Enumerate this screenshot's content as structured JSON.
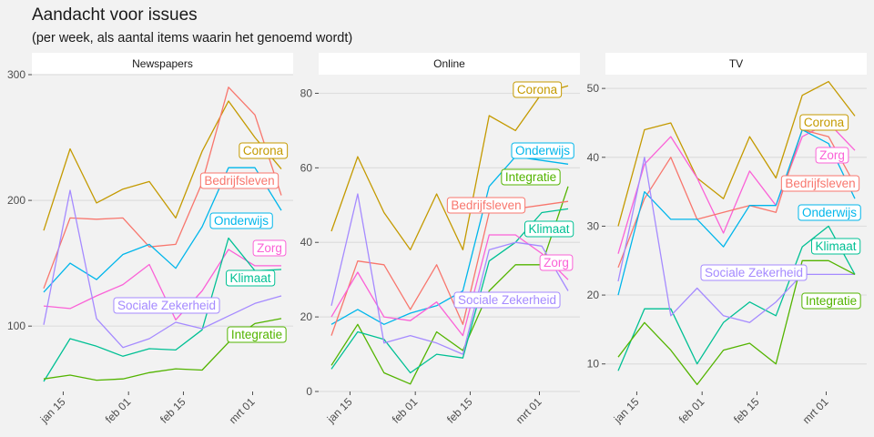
{
  "title": "Aandacht voor issues",
  "subtitle": "(per week, als aantal items waarin het genoemd wordt)",
  "series_colors": {
    "Bedrijfsleven": "#F8766D",
    "Corona": "#C49A00",
    "Integratie": "#53B400",
    "Klimaat": "#00C094",
    "Onderwijs": "#00B6EB",
    "Sociale Zekerheid": "#A58AFF",
    "Zorg": "#FB61D7"
  },
  "chart_data": [
    {
      "type": "line",
      "panel": "Newspapers",
      "x": [
        "2020-01-06",
        "2020-01-13",
        "2020-01-20",
        "2020-01-27",
        "2020-02-03",
        "2020-02-10",
        "2020-02-17",
        "2020-02-24",
        "2020-03-02",
        "2020-03-09"
      ],
      "x_ticks": [
        "jan 15",
        "feb 01",
        "feb 15",
        "mrt 01"
      ],
      "y_ticks": [
        100,
        200,
        300
      ],
      "ylim": [
        48,
        300
      ],
      "series": [
        {
          "name": "Corona",
          "values": [
            176,
            241,
            198,
            209,
            215,
            186,
            239,
            279,
            250,
            225
          ]
        },
        {
          "name": "Bedrijfsleven",
          "values": [
            130,
            186,
            185,
            186,
            163,
            165,
            214,
            290,
            268,
            204
          ]
        },
        {
          "name": "Onderwijs",
          "values": [
            127,
            150,
            137,
            157,
            165,
            146,
            179,
            226,
            226,
            192
          ]
        },
        {
          "name": "Zorg",
          "values": [
            116,
            114,
            124,
            133,
            149,
            105,
            128,
            161,
            148,
            148
          ]
        },
        {
          "name": "Klimaat",
          "values": [
            56,
            90,
            84,
            76,
            82,
            81,
            97,
            170,
            144,
            145
          ]
        },
        {
          "name": "Sociale Zekerheid",
          "values": [
            101,
            208,
            106,
            83,
            90,
            103,
            98,
            108,
            118,
            124
          ]
        },
        {
          "name": "Integratie",
          "values": [
            58,
            61,
            57,
            58,
            63,
            66,
            65,
            87,
            102,
            106
          ]
        }
      ],
      "labels": {
        "Corona": "Corona",
        "Bedrijfsleven": "Bedrijfsleven",
        "Onderwijs": "Onderwijs",
        "Zorg": "Zorg",
        "Klimaat": "Klimaat",
        "Sociale Zekerheid": "Sociale Zekerheid",
        "Integratie": "Integratie"
      }
    },
    {
      "type": "line",
      "panel": "Online",
      "x": [
        "2020-01-06",
        "2020-01-13",
        "2020-01-20",
        "2020-01-27",
        "2020-02-03",
        "2020-02-10",
        "2020-02-17",
        "2020-02-24",
        "2020-03-02",
        "2020-03-09"
      ],
      "x_ticks": [
        "jan 15",
        "feb 01",
        "feb 15",
        "mrt 01"
      ],
      "y_ticks": [
        0,
        20,
        40,
        60,
        80
      ],
      "ylim": [
        0,
        85
      ],
      "series": [
        {
          "name": "Corona",
          "values": [
            43,
            63,
            48,
            38,
            53,
            38,
            74,
            70,
            80,
            82
          ]
        },
        {
          "name": "Onderwijs",
          "values": [
            18,
            22,
            18,
            21,
            23,
            27,
            55,
            63,
            62,
            61
          ]
        },
        {
          "name": "Integratie",
          "values": [
            7,
            18,
            5,
            2,
            16,
            11,
            27,
            34,
            34,
            55
          ]
        },
        {
          "name": "Bedrijfsleven",
          "values": [
            15,
            35,
            34,
            22,
            34,
            18,
            48,
            49,
            50,
            51
          ]
        },
        {
          "name": "Klimaat",
          "values": [
            6,
            16,
            14,
            5,
            10,
            9,
            35,
            40,
            48,
            49
          ]
        },
        {
          "name": "Zorg",
          "values": [
            20,
            32,
            20,
            19,
            24,
            15,
            42,
            42,
            37,
            30
          ]
        },
        {
          "name": "Sociale Zekerheid",
          "values": [
            23,
            53,
            13,
            15,
            13,
            10,
            38,
            40,
            39,
            27
          ]
        }
      ],
      "labels": {
        "Corona": "Corona",
        "Onderwijs": "Onderwijs",
        "Integratie": "Integratie",
        "Bedrijfsleven": "Bedrijfsleven",
        "Klimaat": "Klimaat",
        "Zorg": "Zorg",
        "Sociale Zekerheid": "Sociale Zekerheid"
      }
    },
    {
      "type": "line",
      "panel": "TV",
      "x": [
        "2020-01-06",
        "2020-01-13",
        "2020-01-20",
        "2020-01-27",
        "2020-02-03",
        "2020-02-10",
        "2020-02-17",
        "2020-02-24",
        "2020-03-02",
        "2020-03-09"
      ],
      "x_ticks": [
        "jan 15",
        "feb 01",
        "feb 15",
        "mrt 01"
      ],
      "y_ticks": [
        10,
        20,
        30,
        40,
        50
      ],
      "ylim": [
        6,
        52
      ],
      "series": [
        {
          "name": "Corona",
          "values": [
            30,
            44,
            45,
            37,
            34,
            43,
            37,
            49,
            51,
            46
          ]
        },
        {
          "name": "Zorg",
          "values": [
            26,
            39,
            43,
            37,
            29,
            38,
            33,
            43,
            45,
            41
          ]
        },
        {
          "name": "Bedrijfsleven",
          "values": [
            24,
            34,
            40,
            31,
            32,
            33,
            32,
            44,
            43,
            36
          ]
        },
        {
          "name": "Onderwijs",
          "values": [
            20,
            35,
            31,
            31,
            27,
            33,
            33,
            44,
            42,
            34
          ]
        },
        {
          "name": "Klimaat",
          "values": [
            9,
            18,
            18,
            10,
            16,
            19,
            17,
            27,
            30,
            23
          ]
        },
        {
          "name": "Sociale Zekerheid",
          "values": [
            22,
            40,
            17,
            21,
            17,
            16,
            19,
            23,
            23,
            23
          ]
        },
        {
          "name": "Integratie",
          "values": [
            11,
            16,
            12,
            7,
            12,
            13,
            10,
            25,
            25,
            23
          ]
        }
      ],
      "labels": {
        "Corona": "Corona",
        "Zorg": "Zorg",
        "Bedrijfsleven": "Bedrijfsleven",
        "Onderwijs": "Onderwijs",
        "Klimaat": "Klimaat",
        "Sociale Zekerheid": "Sociale Zekerheid",
        "Integratie": "Integratie"
      }
    }
  ]
}
